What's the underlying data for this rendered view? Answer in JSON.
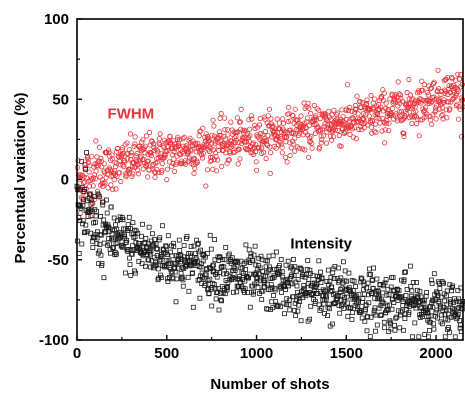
{
  "chart_data": {
    "type": "scatter",
    "title": "",
    "xlabel": "Number of shots",
    "ylabel": "Percentual variation (%)",
    "xlim": [
      0,
      2150
    ],
    "ylim": [
      -100,
      100
    ],
    "x_ticks": [
      "0",
      "500",
      "1000",
      "1500",
      "2000"
    ],
    "y_ticks": [
      "-100",
      "-50",
      "0",
      "50",
      "100"
    ],
    "grid": false,
    "legend": "none",
    "series": [
      {
        "name": "FWHM",
        "color": "#e8333a",
        "marker": "circle-open",
        "trend": {
          "x": [
            0,
            100,
            200,
            300,
            400,
            500,
            600,
            700,
            800,
            900,
            1000,
            1100,
            1200,
            1300,
            1400,
            1500,
            1600,
            1700,
            1800,
            1900,
            2000,
            2100,
            2150
          ],
          "y": [
            -2,
            4,
            8,
            11,
            14,
            16,
            18,
            20,
            22,
            24,
            26,
            28,
            30,
            32,
            34,
            36,
            38,
            41,
            44,
            47,
            51,
            54,
            55
          ]
        },
        "spread": 7,
        "n_points": 1050
      },
      {
        "name": "Intensity",
        "color": "#1a1a1a",
        "marker": "square-open",
        "trend": {
          "x": [
            0,
            100,
            200,
            300,
            400,
            500,
            600,
            700,
            800,
            900,
            1000,
            1100,
            1200,
            1300,
            1400,
            1500,
            1600,
            1700,
            1800,
            1900,
            2000,
            2100,
            2150
          ],
          "y": [
            -15,
            -30,
            -36,
            -41,
            -45,
            -49,
            -52,
            -55,
            -58,
            -61,
            -63,
            -65,
            -67,
            -69,
            -71,
            -72,
            -74,
            -75,
            -77,
            -78,
            -79,
            -80,
            -80
          ]
        },
        "spread": 9,
        "n_points": 1050
      }
    ],
    "annotations": [
      {
        "text": "FWHM",
        "x": 300,
        "y": 38,
        "color": "#e8333a"
      },
      {
        "text": "Intensity",
        "x": 1360,
        "y": -43,
        "color": "#000000"
      }
    ]
  }
}
